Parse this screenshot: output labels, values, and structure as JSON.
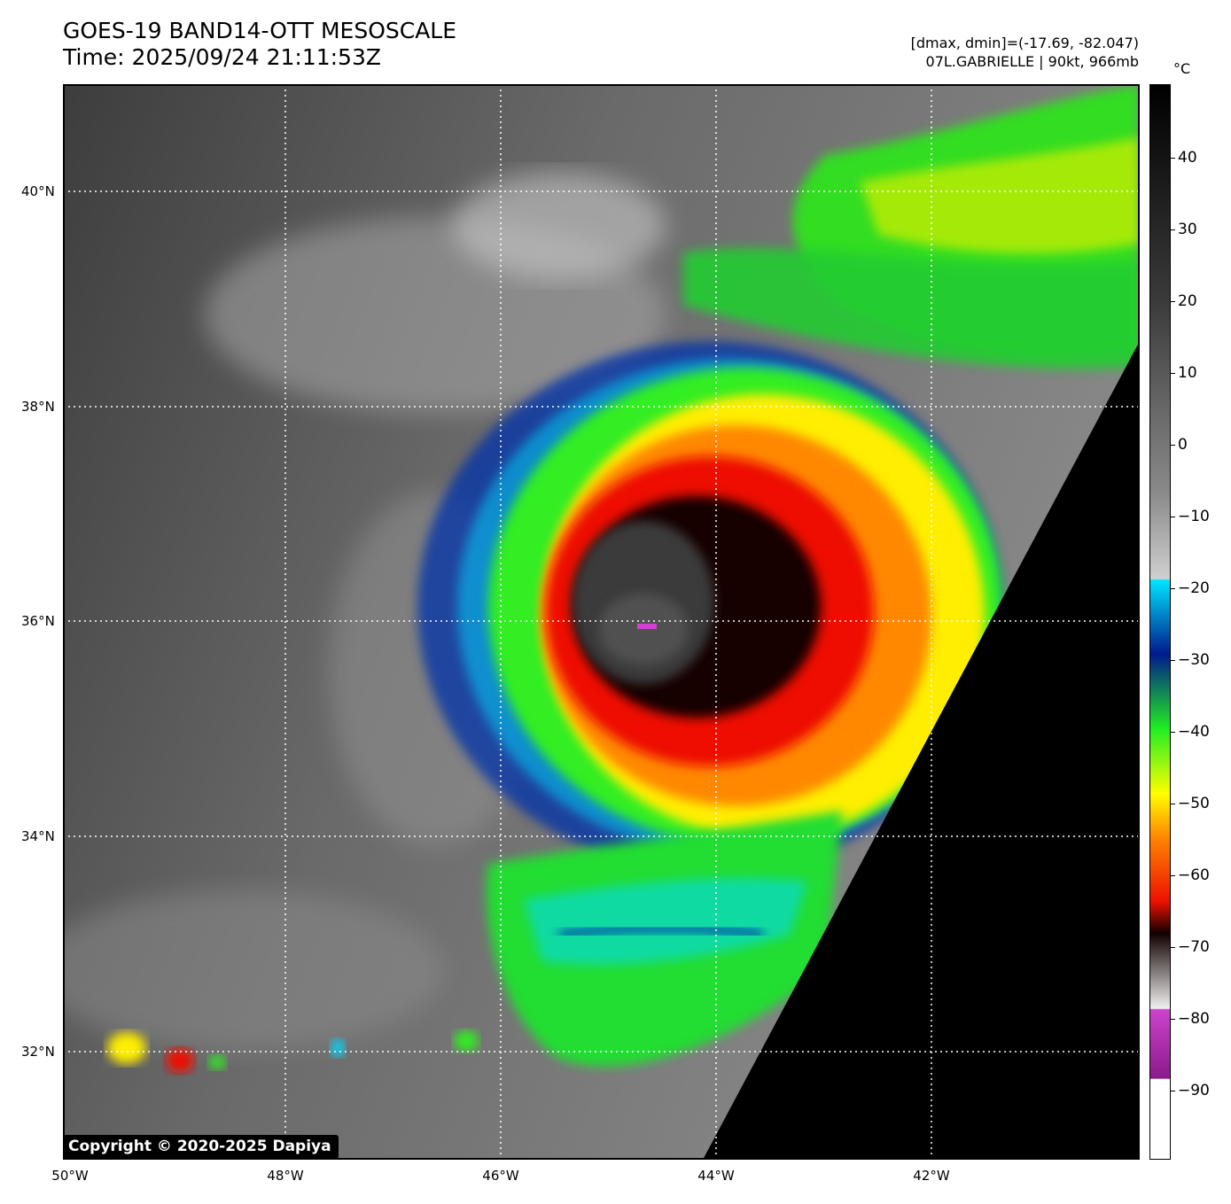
{
  "header": {
    "title_line1": "GOES-19 BAND14-OTT MESOSCALE",
    "title_line2": "Time: 2025/09/24 21:11:53Z",
    "range_text": "[dmax, dmin]=(-17.69, -82.047)",
    "storm_text": "07L.GABRIELLE | 90kt, 966mb"
  },
  "map": {
    "lat_labels": [
      "40°N",
      "38°N",
      "36°N",
      "34°N",
      "32°N"
    ],
    "lon_labels": [
      "50°W",
      "48°W",
      "46°W",
      "44°W",
      "42°W"
    ],
    "copyright": "Copyright © 2020-2025 Dapiya"
  },
  "colorbar": {
    "unit": "°C",
    "ticks": [
      "40",
      "30",
      "20",
      "10",
      "0",
      "−10",
      "−20",
      "−30",
      "−40",
      "−50",
      "−60",
      "−70",
      "−80",
      "−90"
    ],
    "colors": {
      "cyan": "#00e5ff",
      "blue": "#001a8c",
      "green": "#22ee22",
      "yellow": "#ffff00",
      "orange": "#ff8800",
      "red": "#ee1100",
      "dark": "#110000",
      "magenta": "#cc44cc"
    }
  }
}
